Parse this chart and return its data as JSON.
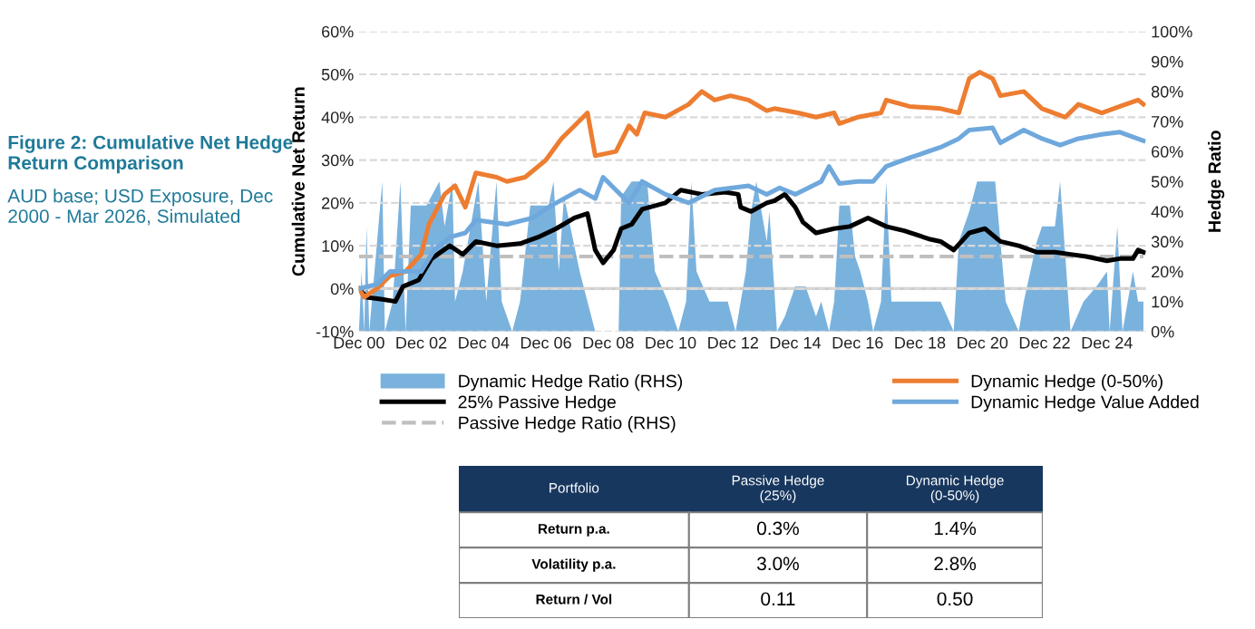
{
  "chart_data": [
    {
      "type": "line",
      "title": "Figure 2: Cumulative Net Hedge Return Comparison",
      "subtitle": "AUD base; USD Exposure, Dec 2000 - Mar 2026, Simulated",
      "ylabel": "Cumulative Net Return",
      "y2label": "Hedge Ratio",
      "xlim": [
        "2000-12",
        "2026-03"
      ],
      "xticks": [
        {
          "value": "2000-12",
          "label": "Dec 00"
        },
        {
          "value": "2002-12",
          "label": "Dec 02"
        },
        {
          "value": "2004-12",
          "label": "Dec 04"
        },
        {
          "value": "2006-12",
          "label": "Dec 06"
        },
        {
          "value": "2008-12",
          "label": "Dec 08"
        },
        {
          "value": "2010-12",
          "label": "Dec 10"
        },
        {
          "value": "2012-12",
          "label": "Dec 12"
        },
        {
          "value": "2014-12",
          "label": "Dec 14"
        },
        {
          "value": "2016-12",
          "label": "Dec 16"
        },
        {
          "value": "2018-12",
          "label": "Dec 18"
        },
        {
          "value": "2020-12",
          "label": "Dec 20"
        },
        {
          "value": "2022-12",
          "label": "Dec 22"
        },
        {
          "value": "2024-12",
          "label": "Dec 24"
        }
      ],
      "ylim": [
        -10,
        60
      ],
      "yticks": [
        {
          "value": -10,
          "label": "-10%"
        },
        {
          "value": 0,
          "label": "0%"
        },
        {
          "value": 10,
          "label": "10%"
        },
        {
          "value": 20,
          "label": "20%"
        },
        {
          "value": 30,
          "label": "30%"
        },
        {
          "value": 40,
          "label": "40%"
        },
        {
          "value": 50,
          "label": "50%"
        },
        {
          "value": 60,
          "label": "60%"
        }
      ],
      "y2lim": [
        0,
        100
      ],
      "y2ticks": [
        {
          "value": 0,
          "label": "0%"
        },
        {
          "value": 10,
          "label": "10%"
        },
        {
          "value": 20,
          "label": "20%"
        },
        {
          "value": 30,
          "label": "30%"
        },
        {
          "value": 40,
          "label": "40%"
        },
        {
          "value": 50,
          "label": "50%"
        },
        {
          "value": 60,
          "label": "60%"
        },
        {
          "value": 70,
          "label": "70%"
        },
        {
          "value": 80,
          "label": "80%"
        },
        {
          "value": 90,
          "label": "90%"
        },
        {
          "value": 100,
          "label": "100%"
        }
      ],
      "grid": "y",
      "legend": "bottom",
      "ref_lines": [
        {
          "axis": "y",
          "value": 0,
          "color": "#cccccc",
          "line_style": "solid"
        }
      ],
      "series": [
        {
          "name": "Dynamic Hedge Ratio (RHS)",
          "type": "area",
          "axis": "y2",
          "color": "#7ab2de",
          "x": [
            "2000-12",
            "2001-01",
            "2001-02",
            "2001-03",
            "2001-04",
            "2001-09",
            "2001-10",
            "2002-01",
            "2002-04",
            "2002-06",
            "2002-08",
            "2003-02",
            "2003-07",
            "2003-09",
            "2003-12",
            "2004-01",
            "2004-04",
            "2004-10",
            "2005-01",
            "2005-05",
            "2005-07",
            "2005-11",
            "2006-02",
            "2006-06",
            "2007-01",
            "2007-03",
            "2007-05",
            "2007-07",
            "2008-01",
            "2008-04",
            "2008-07",
            "2009-04",
            "2009-05",
            "2009-09",
            "2010-03",
            "2010-06",
            "2010-11",
            "2011-03",
            "2011-06",
            "2011-08",
            "2011-10",
            "2012-03",
            "2012-10",
            "2013-01",
            "2013-05",
            "2013-07",
            "2013-09",
            "2014-01",
            "2014-02",
            "2014-05",
            "2014-08",
            "2014-12",
            "2015-04",
            "2015-08",
            "2015-10",
            "2016-01",
            "2016-03",
            "2016-05",
            "2016-09",
            "2016-11",
            "2017-01",
            "2017-04",
            "2017-06",
            "2017-09",
            "2017-11",
            "2018-01",
            "2018-11",
            "2019-08",
            "2020-01",
            "2020-03",
            "2020-07",
            "2020-10",
            "2021-05",
            "2021-07",
            "2021-09",
            "2022-02",
            "2022-04",
            "2022-09",
            "2022-11",
            "2023-04",
            "2023-06",
            "2023-08",
            "2023-10",
            "2024-03",
            "2024-08",
            "2024-12",
            "2025-01",
            "2025-04",
            "2025-06",
            "2025-10",
            "2025-12",
            "2026-02"
          ],
          "values": [
            0,
            20,
            0,
            35,
            0,
            50,
            0,
            10,
            50,
            0,
            42,
            42,
            50,
            35,
            50,
            10,
            20,
            50,
            10,
            50,
            10,
            0,
            10,
            42,
            42,
            50,
            20,
            45,
            20,
            10,
            0,
            0,
            45,
            50,
            50,
            20,
            10,
            0,
            10,
            50,
            20,
            10,
            10,
            0,
            20,
            40,
            50,
            30,
            40,
            0,
            5,
            15,
            15,
            5,
            10,
            0,
            10,
            42,
            42,
            25,
            20,
            10,
            0,
            10,
            50,
            10,
            10,
            10,
            0,
            30,
            40,
            50,
            50,
            30,
            10,
            0,
            10,
            30,
            35,
            35,
            50,
            25,
            0,
            10,
            15,
            20,
            0,
            35,
            0,
            20,
            10,
            10
          ]
        },
        {
          "name": "25% Passive Hedge",
          "type": "line",
          "color": "#000000",
          "x": [
            "2000-12",
            "2001-03",
            "2001-09",
            "2002-02",
            "2002-05",
            "2002-11",
            "2003-04",
            "2003-11",
            "2004-04",
            "2004-09",
            "2005-05",
            "2006-02",
            "2006-09",
            "2007-04",
            "2007-11",
            "2008-04",
            "2008-07",
            "2008-10",
            "2009-02",
            "2009-05",
            "2009-09",
            "2010-01",
            "2010-10",
            "2011-04",
            "2011-12",
            "2012-09",
            "2013-02",
            "2013-03",
            "2013-07",
            "2014-01",
            "2014-04",
            "2014-08",
            "2014-12",
            "2015-03",
            "2015-08",
            "2016-03",
            "2016-09",
            "2017-04",
            "2017-11",
            "2018-06",
            "2019-04",
            "2019-08",
            "2020-01",
            "2020-07",
            "2021-01",
            "2021-07",
            "2022-02",
            "2022-09",
            "2023-04",
            "2023-10",
            "2024-04",
            "2024-12",
            "2025-05",
            "2025-10",
            "2025-12",
            "2026-02"
          ],
          "values": [
            0,
            -2,
            -2.5,
            -3,
            0.5,
            2,
            7,
            10,
            8,
            11,
            10,
            10.5,
            12,
            14,
            16.5,
            17.5,
            9,
            6,
            9,
            14,
            15,
            18.5,
            20,
            23,
            22,
            22.5,
            22,
            19,
            18,
            20,
            20.5,
            22,
            19,
            15.5,
            13,
            14,
            14.5,
            16.5,
            14.5,
            13.5,
            11.5,
            11,
            9,
            13,
            14,
            11,
            10,
            8.5,
            8.5,
            8,
            7.5,
            6.5,
            7,
            7,
            9,
            8.5
          ]
        },
        {
          "name": "Passive Hedge Ratio (RHS)",
          "type": "line",
          "axis": "y2",
          "line_style": "dashed",
          "color": "#bfbfbf",
          "x": [
            "2000-12",
            "2026-02"
          ],
          "values": [
            25,
            25
          ]
        },
        {
          "name": "Dynamic Hedge (0-50%)",
          "type": "line",
          "color": "#ed7d31",
          "x": [
            "2000-12",
            "2001-02",
            "2001-07",
            "2001-12",
            "2002-06",
            "2002-12",
            "2003-03",
            "2003-09",
            "2004-01",
            "2004-05",
            "2004-09",
            "2005-05",
            "2005-09",
            "2006-04",
            "2006-12",
            "2007-06",
            "2007-11",
            "2008-04",
            "2008-07",
            "2009-03",
            "2009-08",
            "2009-11",
            "2010-02",
            "2010-10",
            "2011-07",
            "2011-12",
            "2012-05",
            "2012-11",
            "2013-06",
            "2014-01",
            "2014-04",
            "2015-01",
            "2015-08",
            "2016-03",
            "2016-05",
            "2016-12",
            "2017-09",
            "2017-11",
            "2018-08",
            "2019-08",
            "2020-03",
            "2020-07",
            "2020-11",
            "2021-04",
            "2021-07",
            "2022-04",
            "2022-11",
            "2023-08",
            "2024-01",
            "2024-10",
            "2025-05",
            "2025-12",
            "2026-02"
          ],
          "values": [
            0,
            -2,
            0,
            3,
            4,
            8,
            15,
            22,
            24,
            19,
            27,
            26,
            25,
            26,
            30,
            35,
            38,
            41,
            31,
            32,
            38,
            36,
            41,
            40,
            43,
            46,
            44,
            45,
            44,
            41.5,
            42,
            41,
            40,
            41,
            38.5,
            40,
            41,
            44,
            42.5,
            42,
            41,
            49,
            50.5,
            49,
            45,
            46,
            42,
            40,
            43,
            41,
            42.5,
            44,
            43
          ]
        },
        {
          "name": "Dynamic Hedge Value Added",
          "type": "line",
          "color": "#6fa8dc",
          "x": [
            "2000-12",
            "2001-07",
            "2001-12",
            "2002-12",
            "2003-05",
            "2003-11",
            "2004-05",
            "2004-09",
            "2005-09",
            "2006-07",
            "2007-01",
            "2007-07",
            "2008-01",
            "2008-07",
            "2008-10",
            "2009-03",
            "2009-08",
            "2010-01",
            "2010-10",
            "2011-07",
            "2012-05",
            "2013-06",
            "2014-01",
            "2014-06",
            "2014-12",
            "2015-10",
            "2016-01",
            "2016-05",
            "2016-12",
            "2017-06",
            "2017-11",
            "2018-08",
            "2019-08",
            "2020-03",
            "2020-07",
            "2021-04",
            "2021-07",
            "2022-04",
            "2022-11",
            "2023-06",
            "2024-01",
            "2024-10",
            "2025-05",
            "2026-02"
          ],
          "values": [
            0,
            1,
            4,
            4,
            9,
            12,
            13,
            16,
            15,
            16.5,
            19,
            21,
            23,
            21,
            26,
            23,
            20,
            25,
            22,
            20,
            23,
            24,
            22,
            23.5,
            22,
            25,
            28.5,
            24.5,
            25,
            25,
            28.5,
            30.5,
            33,
            35,
            37,
            37.5,
            34,
            37,
            35,
            33.5,
            35,
            36,
            36.5,
            34.5
          ]
        }
      ]
    },
    {
      "type": "other",
      "color": "#17375e",
      "annotations": [
        "Portfolio",
        "Passive Hedge (25%)",
        "Dynamic Hedge (0-50%)",
        "Return p.a.",
        "0.3%",
        "1.4%",
        "Volatility p.a.",
        "3.0%",
        "2.8%",
        "Return / Vol",
        "0.11",
        "0.50"
      ]
    }
  ]
}
